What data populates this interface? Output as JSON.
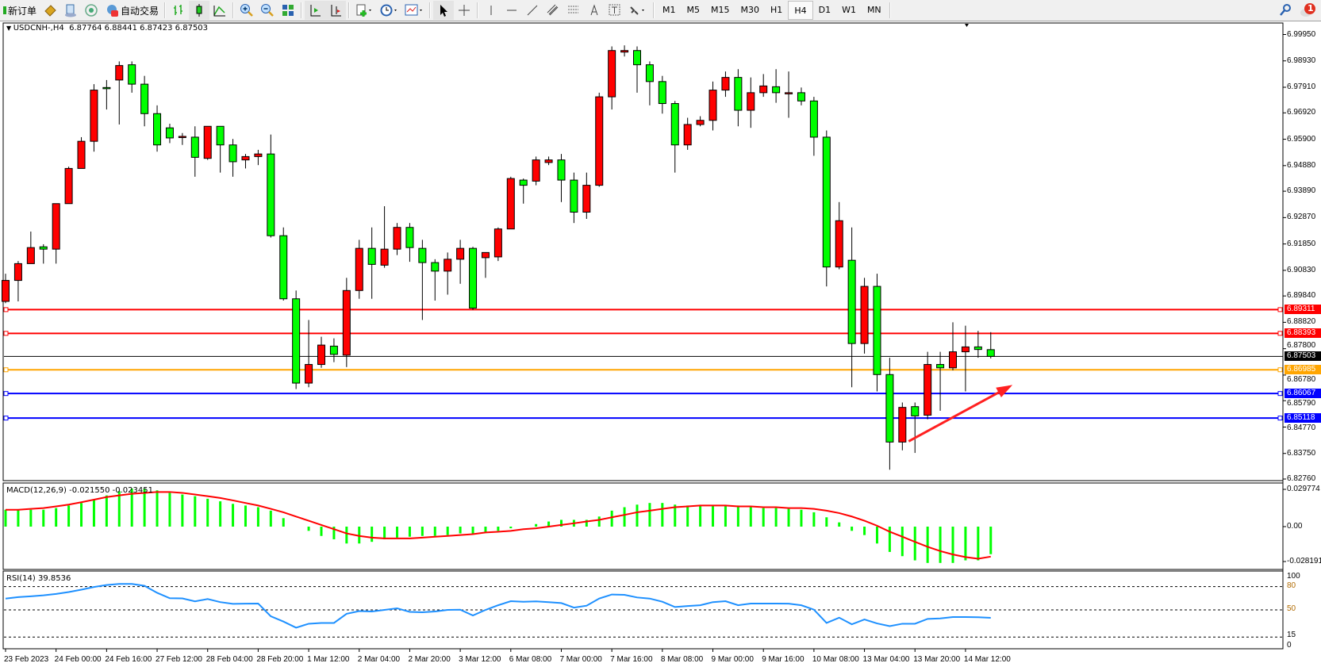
{
  "toolbar": {
    "new_order_label": "新订单",
    "auto_trading_label": "自动交易",
    "timeframes": [
      "M1",
      "M5",
      "M15",
      "M30",
      "H1",
      "H4",
      "D1",
      "W1",
      "MN"
    ],
    "active_timeframe": "H4",
    "notification_count": "1"
  },
  "chart": {
    "header": "USDCNH-,H4  6.87764 6.88441 6.87423 6.87503",
    "up_color": "#ff0000",
    "down_color": "#00ff00",
    "price_ticks": [
      "6.99950",
      "6.98930",
      "6.97910",
      "6.96920",
      "6.95900",
      "6.94880",
      "6.93890",
      "6.92870",
      "6.91850",
      "6.90830",
      "6.89840",
      "6.88820",
      "6.87800",
      "6.86780",
      "6.85790",
      "6.84770",
      "6.83750",
      "6.82760"
    ],
    "hlines": [
      {
        "price": 6.89311,
        "label": "6.89311",
        "color": "#ff0000"
      },
      {
        "price": 6.88393,
        "label": "6.88393",
        "color": "#ff0000"
      },
      {
        "price": 6.87503,
        "label": "6.87503",
        "color": "#000000"
      },
      {
        "price": 6.86985,
        "label": "6.86985",
        "color": "#ffa500"
      },
      {
        "price": 6.86067,
        "label": "6.86067",
        "color": "#0000ff"
      },
      {
        "price": 6.85118,
        "label": "6.85118",
        "color": "#0000ff"
      }
    ],
    "arrow": {
      "color": "#ff2020",
      "from": {
        "bar": 72.5,
        "price": 6.8422
      },
      "to": {
        "bar": 80.5,
        "price": 6.8634
      }
    },
    "time_labels": [
      "23 Feb 2023",
      "24 Feb 00:00",
      "24 Feb 16:00",
      "27 Feb 12:00",
      "28 Feb 04:00",
      "28 Feb 20:00",
      "1 Mar 12:00",
      "2 Mar 04:00",
      "2 Mar 20:00",
      "3 Mar 12:00",
      "6 Mar 08:00",
      "7 Mar 00:00",
      "7 Mar 16:00",
      "8 Mar 08:00",
      "9 Mar 00:00",
      "9 Mar 16:00",
      "10 Mar 08:00",
      "13 Mar 04:00",
      "13 Mar 20:00",
      "14 Mar 12:00"
    ]
  },
  "chart_data": {
    "type": "candlestick",
    "symbol": "USDCNH-",
    "timeframe": "H4",
    "ylim": [
      6.8276,
      6.9995
    ],
    "ohlc": [
      [
        6.8963,
        6.907,
        6.8956,
        6.9044
      ],
      [
        6.9044,
        6.9119,
        6.8963,
        6.9109
      ],
      [
        6.9109,
        6.9233,
        6.9109,
        6.9171
      ],
      [
        6.9174,
        6.9184,
        6.9109,
        6.9165
      ],
      [
        6.9165,
        6.9341,
        6.9109,
        6.9341
      ],
      [
        6.9341,
        6.9484,
        6.9341,
        6.9477
      ],
      [
        6.9477,
        6.9598,
        6.9477,
        6.9582
      ],
      [
        6.9582,
        6.9803,
        6.9542,
        6.978
      ],
      [
        6.979,
        6.9819,
        6.9705,
        6.9787
      ],
      [
        6.9819,
        6.9891,
        6.9647,
        6.9875
      ],
      [
        6.9878,
        6.9891,
        6.977,
        6.9803
      ],
      [
        6.9803,
        6.9835,
        6.964,
        6.9689
      ],
      [
        6.9689,
        6.9721,
        6.9542,
        6.9568
      ],
      [
        6.9634,
        6.965,
        6.9575,
        6.9595
      ],
      [
        6.9601,
        6.9614,
        6.9568,
        6.9601
      ],
      [
        6.9598,
        6.964,
        6.9445,
        6.952
      ],
      [
        6.9516,
        6.964,
        6.951,
        6.964
      ],
      [
        6.964,
        6.964,
        6.9461,
        6.9568
      ],
      [
        6.9568,
        6.9591,
        6.9445,
        6.9503
      ],
      [
        6.951,
        6.9533,
        6.9477,
        6.9523
      ],
      [
        6.9523,
        6.9549,
        6.949,
        6.9533
      ],
      [
        6.9533,
        6.9608,
        6.921,
        6.9217
      ],
      [
        6.9217,
        6.9249,
        6.8966,
        6.8973
      ],
      [
        6.8973,
        6.9005,
        6.8624,
        6.8647
      ],
      [
        6.8647,
        6.8891,
        6.8631,
        6.8719
      ],
      [
        6.8719,
        6.8826,
        6.8706,
        6.8794
      ],
      [
        6.879,
        6.882,
        6.8728,
        6.8758
      ],
      [
        6.8755,
        6.9054,
        6.8709,
        6.9005
      ],
      [
        6.9005,
        6.9201,
        6.8973,
        6.9168
      ],
      [
        6.9168,
        6.9249,
        6.8973,
        6.9106
      ],
      [
        6.9103,
        6.9331,
        6.9093,
        6.9165
      ],
      [
        6.9165,
        6.9266,
        6.9142,
        6.9249
      ],
      [
        6.9249,
        6.9266,
        6.9116,
        6.9171
      ],
      [
        6.9168,
        6.9201,
        6.8891,
        6.9113
      ],
      [
        6.9113,
        6.9126,
        6.8966,
        6.908
      ],
      [
        6.908,
        6.9152,
        6.8989,
        6.9126
      ],
      [
        6.9126,
        6.9201,
        6.9031,
        6.9168
      ],
      [
        6.9168,
        6.9174,
        6.893,
        6.8937
      ],
      [
        6.9132,
        6.9152,
        6.9054,
        6.9152
      ],
      [
        6.9135,
        6.9249,
        6.9119,
        6.9243
      ],
      [
        6.9243,
        6.9445,
        6.9243,
        6.9438
      ],
      [
        6.9432,
        6.9438,
        6.9341,
        6.9412
      ],
      [
        6.9428,
        6.9523,
        6.9412,
        6.951
      ],
      [
        6.95,
        6.9523,
        6.949,
        6.951
      ],
      [
        6.951,
        6.9533,
        6.9347,
        6.9432
      ],
      [
        6.9432,
        6.9461,
        6.9266,
        6.9308
      ],
      [
        6.9308,
        6.9461,
        6.9282,
        6.9412
      ],
      [
        6.9412,
        6.977,
        6.9406,
        6.9754
      ],
      [
        6.9754,
        6.9949,
        6.9705,
        6.9933
      ],
      [
        6.9927,
        6.9953,
        6.991,
        6.9933
      ],
      [
        6.9933,
        6.9949,
        6.977,
        6.9878
      ],
      [
        6.9878,
        6.9891,
        6.9721,
        6.9813
      ],
      [
        6.9813,
        6.9835,
        6.9689,
        6.9728
      ],
      [
        6.9728,
        6.9738,
        6.9461,
        6.9568
      ],
      [
        6.9568,
        6.9673,
        6.9549,
        6.9647
      ],
      [
        6.9647,
        6.9679,
        6.964,
        6.9663
      ],
      [
        6.9663,
        6.9813,
        6.9624,
        6.978
      ],
      [
        6.978,
        6.9852,
        6.9754,
        6.9829
      ],
      [
        6.9829,
        6.9861,
        6.964,
        6.9702
      ],
      [
        6.9702,
        6.9829,
        6.9634,
        6.977
      ],
      [
        6.977,
        6.9842,
        6.9754,
        6.9796
      ],
      [
        6.9793,
        6.9861,
        6.9731,
        6.977
      ],
      [
        6.977,
        6.9852,
        6.9673,
        6.977
      ],
      [
        6.977,
        6.979,
        6.9721,
        6.9738
      ],
      [
        6.9738,
        6.9754,
        6.9526,
        6.9598
      ],
      [
        6.9598,
        6.9624,
        6.9021,
        6.9096
      ],
      [
        6.9096,
        6.9347,
        6.9087,
        6.9275
      ],
      [
        6.9122,
        6.9249,
        6.8631,
        6.88
      ],
      [
        6.88,
        6.9054,
        6.8761,
        6.9021
      ],
      [
        6.9021,
        6.907,
        6.8615,
        6.868
      ],
      [
        6.868,
        6.8745,
        6.8312,
        6.8419
      ],
      [
        6.8419,
        6.8572,
        6.8387,
        6.8553
      ],
      [
        6.8556,
        6.8572,
        6.8377,
        6.852
      ],
      [
        6.8523,
        6.8768,
        6.8507,
        6.8719
      ],
      [
        6.8719,
        6.8768,
        6.854,
        6.8706
      ],
      [
        6.8706,
        6.8882,
        6.8696,
        6.8768
      ],
      [
        6.8768,
        6.8869,
        6.8615,
        6.8787
      ],
      [
        6.8787,
        6.8849,
        6.8745,
        6.8777
      ],
      [
        6.87764,
        6.88441,
        6.87423,
        6.87503
      ]
    ],
    "macd": {
      "label": "MACD(12,26,9) -0.021550 -0.023451",
      "ticks": [
        "0.029774",
        "0.00",
        "-0.028191"
      ],
      "ylim": [
        -0.028191,
        0.029774
      ],
      "hist_color": "#00ff00",
      "signal_color": "#ff0000",
      "histogram": [
        0.0132,
        0.0132,
        0.0132,
        0.0132,
        0.0145,
        0.0165,
        0.0185,
        0.0211,
        0.0244,
        0.0277,
        0.0297,
        0.0297,
        0.0284,
        0.0264,
        0.0251,
        0.0238,
        0.0218,
        0.0198,
        0.0178,
        0.0165,
        0.0152,
        0.0125,
        0.0066,
        0,
        -0.0033,
        -0.0073,
        -0.0099,
        -0.0132,
        -0.0132,
        -0.0119,
        -0.0099,
        -0.0086,
        -0.0079,
        -0.0073,
        -0.0073,
        -0.0066,
        -0.0053,
        -0.0059,
        -0.0046,
        -0.0033,
        -0.0013,
        0,
        0.002,
        0.004,
        0.0053,
        0.0053,
        0.0053,
        0.0079,
        0.0125,
        0.0152,
        0.0172,
        0.0185,
        0.0185,
        0.0172,
        0.0165,
        0.0165,
        0.0165,
        0.0165,
        0.0165,
        0.0152,
        0.0145,
        0.0145,
        0.0139,
        0.0132,
        0.0112,
        0.0073,
        0.0033,
        -0.0033,
        -0.0066,
        -0.0132,
        -0.0198,
        -0.0231,
        -0.0264,
        -0.0284,
        -0.0284,
        -0.0284,
        -0.0264,
        -0.0264,
        -0.02155
      ],
      "signal": [
        0.0132,
        0.0132,
        0.0139,
        0.0145,
        0.0158,
        0.0172,
        0.0191,
        0.0211,
        0.0231,
        0.0244,
        0.0257,
        0.0264,
        0.0271,
        0.0271,
        0.0264,
        0.0251,
        0.0238,
        0.0224,
        0.0205,
        0.0185,
        0.0165,
        0.0139,
        0.0112,
        0.0079,
        0.0046,
        0.0013,
        -0.002,
        -0.0053,
        -0.0073,
        -0.0086,
        -0.0092,
        -0.0092,
        -0.0092,
        -0.0086,
        -0.0079,
        -0.0073,
        -0.0066,
        -0.0059,
        -0.0046,
        -0.004,
        -0.0033,
        -0.002,
        -0.0013,
        0,
        0.0013,
        0.0026,
        0.004,
        0.0053,
        0.0073,
        0.0092,
        0.0112,
        0.0125,
        0.0139,
        0.0152,
        0.0158,
        0.0165,
        0.0165,
        0.0165,
        0.0158,
        0.0158,
        0.0152,
        0.0152,
        0.0145,
        0.0145,
        0.0139,
        0.0125,
        0.0106,
        0.0079,
        0.0046,
        0.0007,
        -0.004,
        -0.0079,
        -0.0119,
        -0.0158,
        -0.0191,
        -0.0218,
        -0.0238,
        -0.0251,
        -0.023451
      ]
    },
    "rsi": {
      "label": "RSI(14) 39.8536",
      "ticks": [
        "100",
        "80",
        "50",
        "15",
        "0"
      ],
      "levels": [
        80,
        50,
        15
      ],
      "ylim": [
        0,
        100
      ],
      "color": "#1e90ff",
      "values": [
        64.5,
        66.5,
        67.5,
        68.8,
        70.5,
        73,
        76,
        79.5,
        82,
        83.4,
        83.4,
        81,
        72,
        65,
        64.8,
        61,
        64,
        60,
        57.8,
        58,
        58.2,
        41.8,
        35,
        27.1,
        32.2,
        33.2,
        33.2,
        45,
        48.5,
        48,
        50,
        52,
        47.5,
        46.9,
        48,
        50,
        50.3,
        42.8,
        50,
        56,
        61.2,
        60.5,
        61,
        60,
        58.8,
        53,
        55.4,
        64.6,
        69.8,
        69.4,
        66,
        64.6,
        60.5,
        53.7,
        55,
        56,
        60,
        61.2,
        56,
        58.2,
        58.2,
        58.2,
        58,
        56,
        50.3,
        33.2,
        40,
        31.5,
        37.7,
        32.6,
        29.1,
        32.2,
        32.2,
        38.4,
        39,
        40.8,
        40.8,
        40.5,
        39.85
      ]
    }
  }
}
